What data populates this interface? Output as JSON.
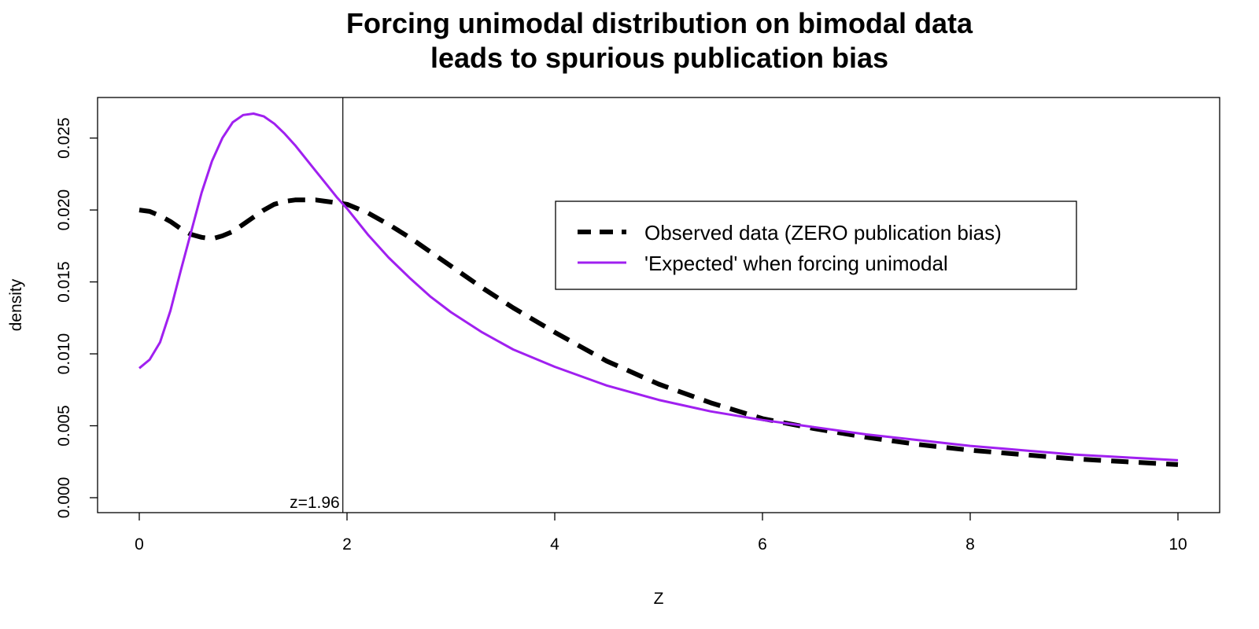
{
  "chart_data": {
    "type": "line",
    "title": [
      "Forcing unimodal distribution on bimodal data",
      "leads to spurious publication bias"
    ],
    "xlabel": "Z",
    "ylabel": "density",
    "xlim": [
      0,
      10
    ],
    "ylim": [
      0,
      0.026
    ],
    "x_ticks": [
      "0",
      "2",
      "4",
      "6",
      "8",
      "10"
    ],
    "y_ticks": [
      "0.000",
      "0.005",
      "0.010",
      "0.015",
      "0.020",
      "0.025"
    ],
    "grid": false,
    "legend_position": "top-right",
    "annotations": [
      {
        "text": "z=1.96",
        "x": 1.96
      }
    ],
    "series": [
      {
        "name": "Observed data (ZERO publication bias)",
        "color": "#000000",
        "style": "dashed",
        "x": [
          0,
          0.1,
          0.2,
          0.3,
          0.4,
          0.5,
          0.6,
          0.7,
          0.8,
          0.9,
          1.0,
          1.1,
          1.2,
          1.3,
          1.4,
          1.5,
          1.6,
          1.7,
          1.8,
          1.9,
          2.0,
          2.2,
          2.4,
          2.6,
          2.8,
          3.0,
          3.3,
          3.6,
          4.0,
          4.5,
          5.0,
          5.5,
          6.0,
          6.5,
          7.0,
          7.5,
          8.0,
          8.5,
          9.0,
          9.5,
          10.0
        ],
        "y": [
          0.02,
          0.0199,
          0.0196,
          0.0192,
          0.0187,
          0.0183,
          0.0181,
          0.018,
          0.0182,
          0.0185,
          0.019,
          0.0195,
          0.02,
          0.0204,
          0.0206,
          0.0207,
          0.0207,
          0.0207,
          0.0206,
          0.0205,
          0.0204,
          0.0198,
          0.019,
          0.0181,
          0.0171,
          0.0161,
          0.0146,
          0.0132,
          0.0115,
          0.0095,
          0.0079,
          0.0066,
          0.0055,
          0.0048,
          0.0042,
          0.0037,
          0.0033,
          0.003,
          0.0027,
          0.0025,
          0.0023
        ]
      },
      {
        "name": "'Expected' when forcing unimodal",
        "color": "#A020F0",
        "style": "solid",
        "x": [
          0,
          0.1,
          0.2,
          0.3,
          0.4,
          0.5,
          0.6,
          0.7,
          0.8,
          0.9,
          1.0,
          1.1,
          1.2,
          1.3,
          1.4,
          1.5,
          1.6,
          1.7,
          1.8,
          1.9,
          2.0,
          2.2,
          2.4,
          2.6,
          2.8,
          3.0,
          3.3,
          3.6,
          4.0,
          4.5,
          5.0,
          5.5,
          6.0,
          6.5,
          7.0,
          7.5,
          8.0,
          8.5,
          9.0,
          9.5,
          10.0
        ],
        "y": [
          0.009,
          0.0096,
          0.0108,
          0.013,
          0.0158,
          0.0185,
          0.0212,
          0.0234,
          0.025,
          0.0261,
          0.0266,
          0.0267,
          0.0265,
          0.026,
          0.0253,
          0.0245,
          0.0236,
          0.0227,
          0.0218,
          0.0209,
          0.0201,
          0.0183,
          0.0167,
          0.0153,
          0.014,
          0.0129,
          0.0115,
          0.0103,
          0.0091,
          0.0078,
          0.0068,
          0.006,
          0.0054,
          0.0049,
          0.0044,
          0.004,
          0.0036,
          0.0033,
          0.003,
          0.0028,
          0.0026
        ]
      }
    ]
  }
}
